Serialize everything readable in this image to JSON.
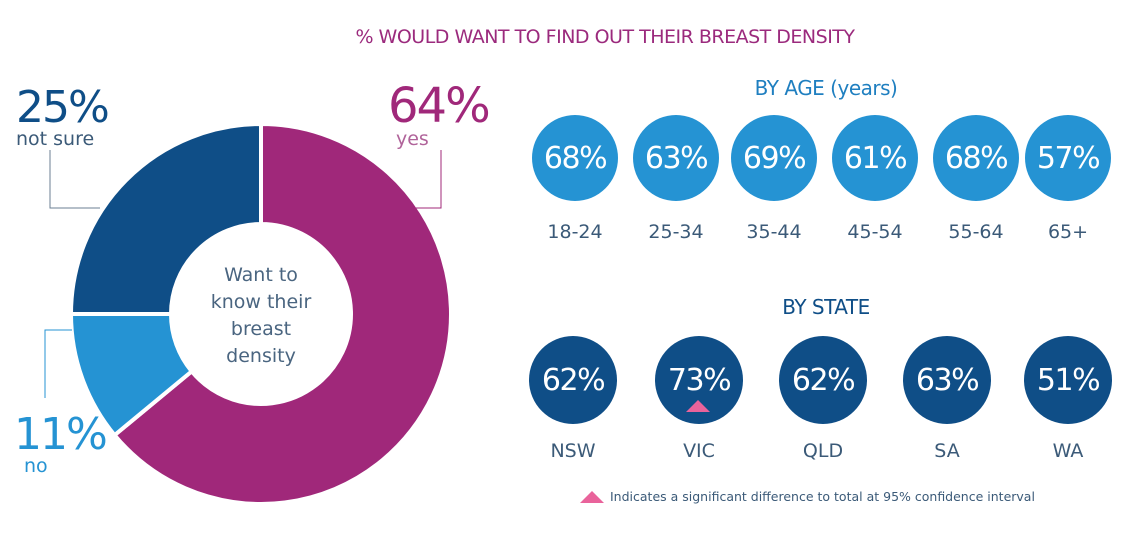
{
  "title": "% WOULD WANT TO FIND OUT THEIR BREAST DENSITY",
  "chart_data": [
    {
      "type": "pie",
      "subtype": "donut",
      "center_label": "Want to know their breast density",
      "slices": [
        {
          "label": "yes",
          "value": 64,
          "display": "64%",
          "color": "#a0287a"
        },
        {
          "label": "no",
          "value": 11,
          "display": "11%",
          "color": "#2593d3"
        },
        {
          "label": "not sure",
          "value": 25,
          "display": "25%",
          "color": "#0f4e87"
        }
      ]
    },
    {
      "type": "table",
      "title": "BY AGE (years)",
      "categories": [
        "18-24",
        "25-34",
        "35-44",
        "45-54",
        "55-64",
        "65+"
      ],
      "values": [
        68,
        63,
        69,
        61,
        68,
        57
      ],
      "display": [
        "68%",
        "63%",
        "69%",
        "61%",
        "68%",
        "57%"
      ]
    },
    {
      "type": "table",
      "title": "BY STATE",
      "categories": [
        "NSW",
        "VIC",
        "QLD",
        "SA",
        "WA"
      ],
      "values": [
        62,
        73,
        62,
        63,
        51
      ],
      "display": [
        "62%",
        "73%",
        "62%",
        "63%",
        "51%"
      ],
      "significant": [
        false,
        true,
        false,
        false,
        false
      ]
    }
  ],
  "legend": {
    "text": "Indicates a significant difference to total at 95% confidence interval",
    "marker_color": "#e9639b"
  }
}
